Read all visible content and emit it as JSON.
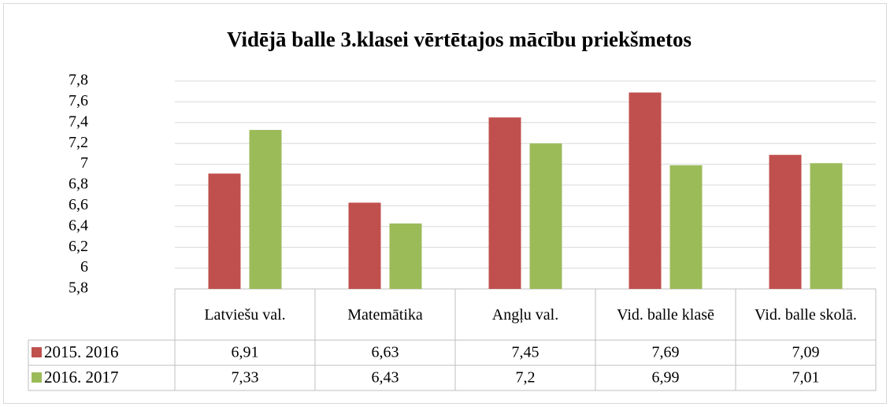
{
  "chart_data": {
    "type": "bar",
    "title": "Vidējā balle 3.klasei vērtētajos mācību priekšmetos",
    "categories": [
      "Latviešu val.",
      "Matemātika",
      "Angļu val.",
      "Vid. balle klasē",
      "Vid. balle skolā."
    ],
    "series": [
      {
        "name": "2015. 2016",
        "color": "#c0504d",
        "values": [
          6.91,
          6.63,
          7.45,
          7.69,
          7.09
        ],
        "value_labels": [
          "6,91",
          "6,63",
          "7,45",
          "7,69",
          "7,09"
        ]
      },
      {
        "name": "2016. 2017",
        "color": "#9bbb59",
        "values": [
          7.33,
          6.43,
          7.2,
          6.99,
          7.01
        ],
        "value_labels": [
          "7,33",
          "6,43",
          "7,2",
          "6,99",
          "7,01"
        ]
      }
    ],
    "ylim": [
      5.8,
      7.8
    ],
    "yticks": [
      {
        "value": 5.8,
        "label": "5,8"
      },
      6,
      {
        "value": 6.2,
        "label": "6,2"
      },
      {
        "value": 6.4,
        "label": "6,4"
      },
      {
        "value": 6.6,
        "label": "6,6"
      },
      {
        "value": 6.8,
        "label": "6,8"
      },
      7,
      {
        "value": 7.2,
        "label": "7,2"
      },
      {
        "value": 7.4,
        "label": "7,4"
      },
      {
        "value": 7.6,
        "label": "7,6"
      },
      {
        "value": 7.8,
        "label": "7,8"
      }
    ],
    "grid": true
  }
}
